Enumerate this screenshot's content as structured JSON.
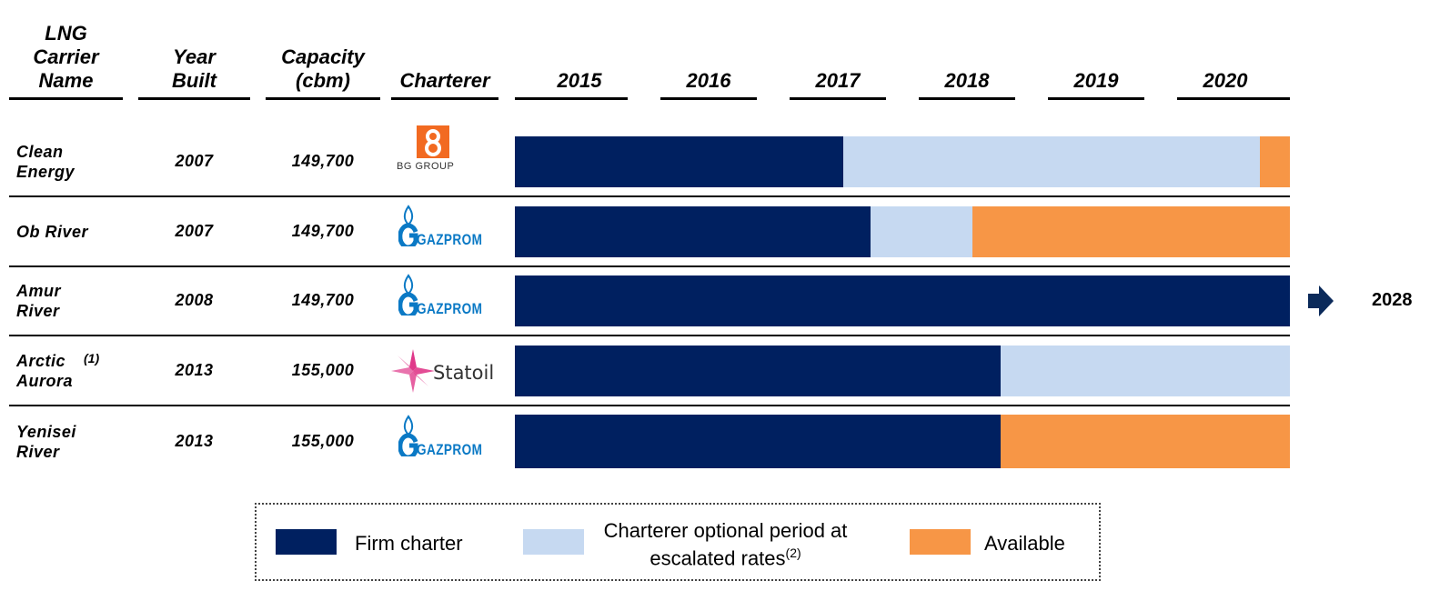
{
  "chart_data": {
    "type": "gantt",
    "columns": [
      "LNG Carrier Name",
      "Year Built",
      "Capacity (cbm)",
      "Charterer"
    ],
    "xlim": [
      2015,
      2021
    ],
    "xticks": [
      2015,
      2016,
      2017,
      2018,
      2019,
      2020
    ],
    "rows": [
      {
        "name": "Clean Energy",
        "year_built": 2007,
        "capacity": "149,700",
        "charterer": "BG GROUP"
      },
      {
        "name": "Ob River",
        "year_built": 2007,
        "capacity": "149,700",
        "charterer": "GAZPROM"
      },
      {
        "name": "Amur River",
        "year_built": 2008,
        "capacity": "149,700",
        "charterer": "GAZPROM"
      },
      {
        "name": "Arctic Aurora",
        "footnote": "(1)",
        "year_built": 2013,
        "capacity": "155,000",
        "charterer": "Statoil"
      },
      {
        "name": "Yenisei River",
        "year_built": 2013,
        "capacity": "155,000",
        "charterer": "GAZPROM"
      }
    ],
    "series": [
      {
        "name": "Firm charter",
        "color": "#002060",
        "values": [
          [
            2015,
            2017.54
          ],
          [
            2015,
            2017.75
          ],
          [
            2015,
            2021
          ],
          [
            2015,
            2018.76
          ],
          [
            2015,
            2018.76
          ]
        ]
      },
      {
        "name": "Charterer optional period at escalated rates",
        "footnote": "(2)",
        "color": "#c6d9f1",
        "values": [
          [
            2017.54,
            2020.77
          ],
          [
            2017.75,
            2018.54
          ],
          null,
          [
            2018.76,
            2021
          ],
          null
        ]
      },
      {
        "name": "Available",
        "color": "#f79646",
        "values": [
          [
            2020.77,
            2021
          ],
          [
            2018.54,
            2021
          ],
          null,
          null,
          [
            2018.76,
            2021
          ]
        ]
      }
    ],
    "annotations": [
      {
        "row": 2,
        "text": "2028"
      }
    ]
  }
}
